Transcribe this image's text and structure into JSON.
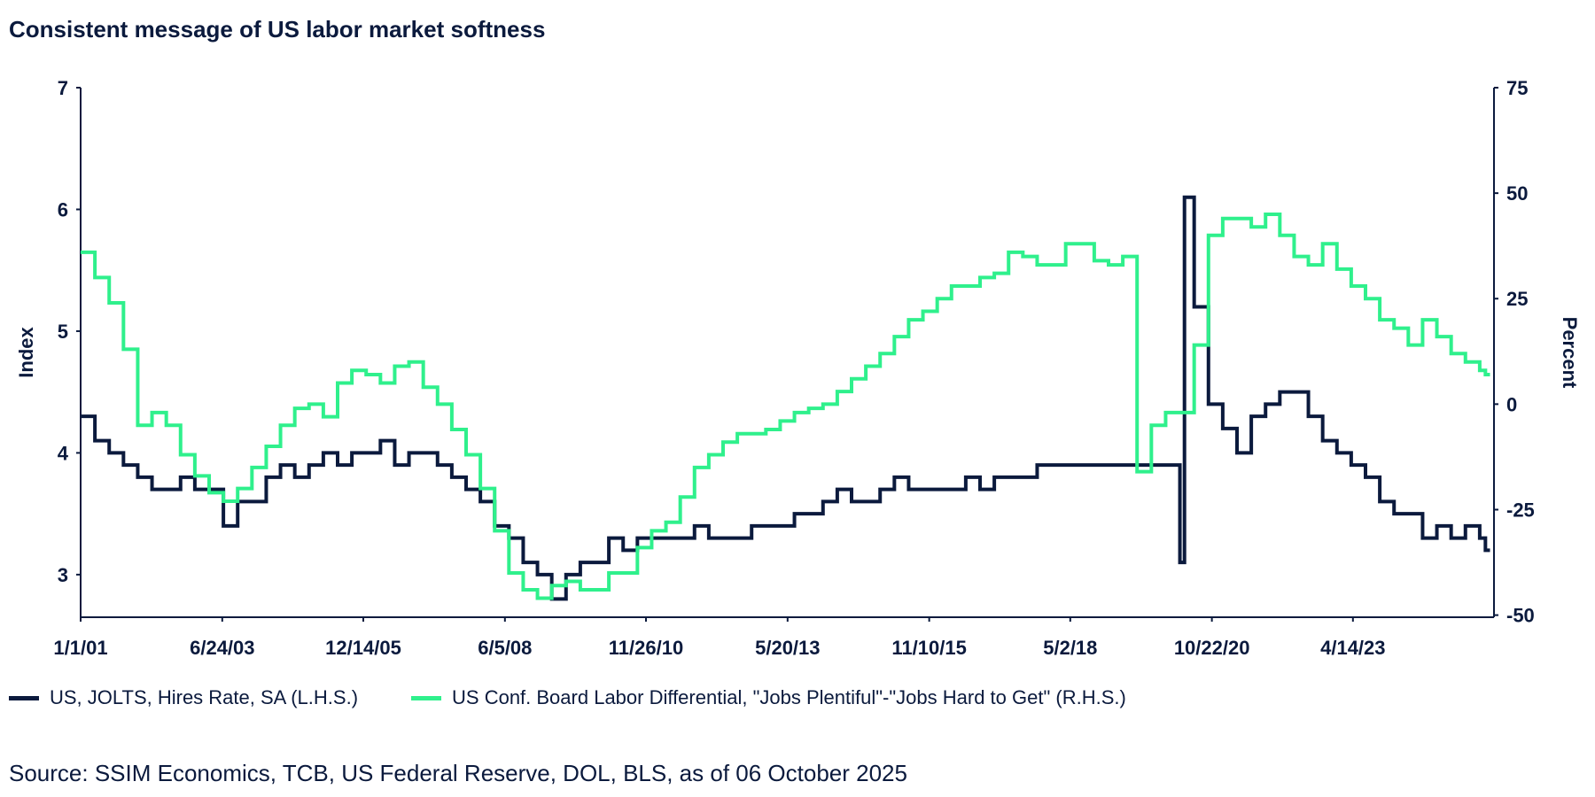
{
  "title": "Consistent message of US labor market softness",
  "source": "Source: SSIM Economics, TCB, US Federal Reserve, DOL, BLS, as of 06 October 2025",
  "colors": {
    "navy": "#0b1a3d",
    "green": "#2ff08c"
  },
  "chart_data": {
    "type": "line",
    "title": "Consistent message of US labor market softness",
    "xlabel": "",
    "ylabel": "Index",
    "y2label": "Percent",
    "ylim": [
      2.65,
      7
    ],
    "y2lim": [
      -50.5,
      75
    ],
    "yticks": [
      "3",
      "4",
      "5",
      "6",
      "7"
    ],
    "y2ticks": [
      "-50",
      "-25",
      "0",
      "25",
      "50",
      "75"
    ],
    "xlim": [
      2001.0,
      2025.75
    ],
    "xticks": [
      {
        "label": "1/1/01",
        "x": 2001.0
      },
      {
        "label": "6/24/03",
        "x": 2003.48
      },
      {
        "label": "12/14/05",
        "x": 2005.95
      },
      {
        "label": "6/5/08",
        "x": 2008.43
      },
      {
        "label": "11/26/10",
        "x": 2010.9
      },
      {
        "label": "5/20/13",
        "x": 2013.38
      },
      {
        "label": "11/10/15",
        "x": 2015.86
      },
      {
        "label": "5/2/18",
        "x": 2018.33
      },
      {
        "label": "10/22/20",
        "x": 2020.81
      },
      {
        "label": "4/14/23",
        "x": 2023.28
      }
    ],
    "legend_position": "bottom",
    "grid": false,
    "series": [
      {
        "name": "US, JOLTS, Hires Rate, SA (L.H.S.)",
        "axis": "left",
        "x": [
          2001.0,
          2001.25,
          2001.5,
          2001.75,
          2002.0,
          2002.25,
          2002.5,
          2002.75,
          2003.0,
          2003.25,
          2003.5,
          2003.75,
          2004.0,
          2004.25,
          2004.5,
          2004.75,
          2005.0,
          2005.25,
          2005.5,
          2005.75,
          2006.0,
          2006.25,
          2006.5,
          2006.75,
          2007.0,
          2007.25,
          2007.5,
          2007.75,
          2008.0,
          2008.25,
          2008.5,
          2008.75,
          2009.0,
          2009.25,
          2009.5,
          2009.75,
          2010.0,
          2010.25,
          2010.5,
          2010.75,
          2011.0,
          2011.25,
          2011.5,
          2011.75,
          2012.0,
          2012.25,
          2012.5,
          2012.75,
          2013.0,
          2013.25,
          2013.5,
          2013.75,
          2014.0,
          2014.25,
          2014.5,
          2014.75,
          2015.0,
          2015.25,
          2015.5,
          2015.75,
          2016.0,
          2016.25,
          2016.5,
          2016.75,
          2017.0,
          2017.25,
          2017.5,
          2017.75,
          2018.0,
          2018.25,
          2018.5,
          2018.75,
          2019.0,
          2019.25,
          2019.5,
          2019.75,
          2020.0,
          2020.25,
          2020.33,
          2020.5,
          2020.75,
          2021.0,
          2021.25,
          2021.5,
          2021.75,
          2022.0,
          2022.25,
          2022.5,
          2022.75,
          2023.0,
          2023.25,
          2023.5,
          2023.75,
          2024.0,
          2024.25,
          2024.5,
          2024.75,
          2025.0,
          2025.25,
          2025.5,
          2025.6
        ],
        "values": [
          4.3,
          4.1,
          4.0,
          3.9,
          3.8,
          3.7,
          3.7,
          3.8,
          3.7,
          3.7,
          3.4,
          3.6,
          3.6,
          3.8,
          3.9,
          3.8,
          3.9,
          4.0,
          3.9,
          4.0,
          4.0,
          4.1,
          3.9,
          4.0,
          4.0,
          3.9,
          3.8,
          3.7,
          3.6,
          3.4,
          3.3,
          3.1,
          3.0,
          2.8,
          3.0,
          3.1,
          3.1,
          3.3,
          3.2,
          3.3,
          3.3,
          3.3,
          3.3,
          3.4,
          3.3,
          3.3,
          3.3,
          3.4,
          3.4,
          3.4,
          3.5,
          3.5,
          3.6,
          3.7,
          3.6,
          3.6,
          3.7,
          3.8,
          3.7,
          3.7,
          3.7,
          3.7,
          3.8,
          3.7,
          3.8,
          3.8,
          3.8,
          3.9,
          3.9,
          3.9,
          3.9,
          3.9,
          3.9,
          3.9,
          3.9,
          3.9,
          3.9,
          3.1,
          6.1,
          5.2,
          4.4,
          4.2,
          4.0,
          4.3,
          4.4,
          4.5,
          4.5,
          4.3,
          4.1,
          4.0,
          3.9,
          3.8,
          3.6,
          3.5,
          3.5,
          3.3,
          3.4,
          3.3,
          3.4,
          3.3,
          3.2
        ]
      },
      {
        "name": "US Conf. Board Labor Differential, \"Jobs Plentiful\"-\"Jobs Hard to Get\" (R.H.S.)",
        "axis": "right",
        "x": [
          2001.0,
          2001.25,
          2001.5,
          2001.75,
          2002.0,
          2002.25,
          2002.5,
          2002.75,
          2003.0,
          2003.25,
          2003.5,
          2003.75,
          2004.0,
          2004.25,
          2004.5,
          2004.75,
          2005.0,
          2005.25,
          2005.5,
          2005.75,
          2006.0,
          2006.25,
          2006.5,
          2006.75,
          2007.0,
          2007.25,
          2007.5,
          2007.75,
          2008.0,
          2008.25,
          2008.5,
          2008.75,
          2009.0,
          2009.25,
          2009.5,
          2009.75,
          2010.0,
          2010.25,
          2010.5,
          2010.75,
          2011.0,
          2011.25,
          2011.5,
          2011.75,
          2012.0,
          2012.25,
          2012.5,
          2012.75,
          2013.0,
          2013.25,
          2013.5,
          2013.75,
          2014.0,
          2014.25,
          2014.5,
          2014.75,
          2015.0,
          2015.25,
          2015.5,
          2015.75,
          2016.0,
          2016.25,
          2016.5,
          2016.75,
          2017.0,
          2017.25,
          2017.5,
          2017.75,
          2018.0,
          2018.25,
          2018.5,
          2018.75,
          2019.0,
          2019.25,
          2019.5,
          2019.75,
          2020.0,
          2020.25,
          2020.5,
          2020.75,
          2021.0,
          2021.25,
          2021.5,
          2021.75,
          2022.0,
          2022.25,
          2022.5,
          2022.75,
          2023.0,
          2023.25,
          2023.5,
          2023.75,
          2024.0,
          2024.25,
          2024.5,
          2024.75,
          2025.0,
          2025.25,
          2025.5,
          2025.6
        ],
        "values": [
          36,
          30,
          24,
          13,
          -5,
          -2,
          -5,
          -12,
          -17,
          -21,
          -23,
          -20,
          -15,
          -10,
          -5,
          -1,
          0,
          -3,
          5,
          8,
          7,
          5,
          9,
          10,
          4,
          0,
          -6,
          -12,
          -20,
          -30,
          -40,
          -44,
          -46,
          -43,
          -42,
          -44,
          -44,
          -40,
          -40,
          -34,
          -30,
          -28,
          -22,
          -15,
          -12,
          -9,
          -7,
          -7,
          -6,
          -4,
          -2,
          -1,
          0,
          3,
          6,
          9,
          12,
          16,
          20,
          22,
          25,
          28,
          28,
          30,
          31,
          36,
          35,
          33,
          33,
          38,
          38,
          34,
          33,
          35,
          -16,
          -5,
          -2,
          -2,
          14,
          40,
          44,
          44,
          42,
          45,
          40,
          35,
          33,
          38,
          32,
          28,
          25,
          20,
          18,
          14,
          20,
          16,
          12,
          10,
          8,
          7
        ]
      }
    ]
  }
}
